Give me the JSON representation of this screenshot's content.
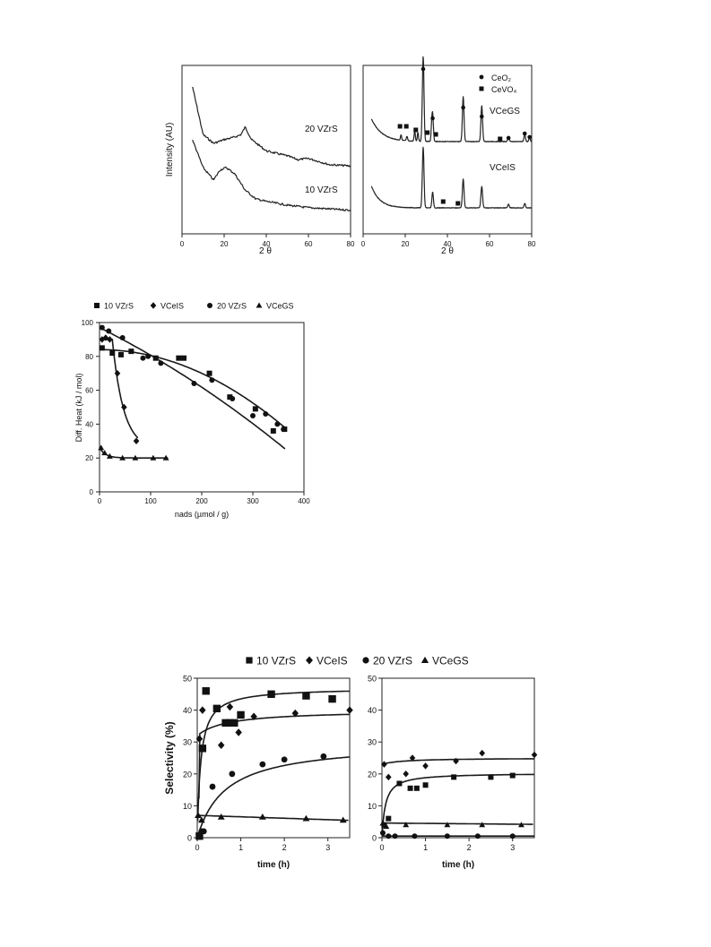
{
  "chart_data": [
    {
      "type": "line",
      "panel": "xrd-left",
      "xlabel": "2 θ",
      "ylabel": "Intensity (AU)",
      "xlim": [
        0,
        80
      ],
      "xticks": [
        "0",
        "20",
        "40",
        "60",
        "80"
      ],
      "series": [
        {
          "name": "20 VZrS",
          "x": [
            5,
            10,
            15,
            20,
            25,
            28,
            30,
            33,
            40,
            50,
            55,
            60,
            70,
            80
          ],
          "values": [
            1.0,
            0.62,
            0.55,
            0.58,
            0.6,
            0.62,
            0.68,
            0.58,
            0.49,
            0.45,
            0.42,
            0.43,
            0.38,
            0.37
          ]
        },
        {
          "name": "10 VZrS",
          "x": [
            5,
            10,
            15,
            18,
            21,
            25,
            30,
            35,
            40,
            50,
            60,
            70,
            80
          ],
          "values": [
            0.62,
            0.4,
            0.3,
            0.38,
            0.4,
            0.35,
            0.22,
            0.15,
            0.13,
            0.1,
            0.08,
            0.07,
            0.06
          ]
        }
      ],
      "annotations": [
        "20 VZrS",
        "10 VZrS"
      ]
    },
    {
      "type": "line",
      "panel": "xrd-right",
      "xlabel": "2 θ",
      "xlim": [
        0,
        80
      ],
      "xticks": [
        "0",
        "20",
        "40",
        "60",
        "80"
      ],
      "legend": [
        {
          "marker": "circle",
          "label": "CeO₂"
        },
        {
          "marker": "square",
          "label": "CeVO₄"
        }
      ],
      "series_labels": [
        "VCeGS",
        "VCeIS"
      ],
      "peaks_CeO2_2theta": [
        28.5,
        33,
        47.5,
        56.3,
        69,
        76.7,
        79
      ],
      "peaks_CeVO4_2theta": [
        18,
        20.8,
        24.5,
        26,
        32.5,
        35,
        48,
        65
      ]
    },
    {
      "type": "scatter",
      "panel": "differential-heat",
      "title": "",
      "xlabel": "nads (µmol / g)",
      "ylabel": "Diff. Heat (kJ / mol)",
      "xlim": [
        0,
        400
      ],
      "ylim": [
        0,
        100
      ],
      "xticks": [
        "0",
        "100",
        "200",
        "300",
        "400"
      ],
      "yticks": [
        "0",
        "20",
        "40",
        "60",
        "80",
        "100"
      ],
      "legend_position": "top",
      "series": [
        {
          "name": "10 VZrS",
          "marker": "square",
          "x": [
            5,
            25,
            42,
            62,
            110,
            155,
            165,
            215,
            255,
            305,
            340,
            362
          ],
          "values": [
            85,
            82,
            81,
            83,
            79,
            79,
            79,
            70,
            56,
            49,
            36,
            37
          ]
        },
        {
          "name": "VCeIS",
          "marker": "diamond",
          "x": [
            5,
            12,
            20,
            35,
            48,
            72
          ],
          "values": [
            90,
            91,
            90,
            70,
            50,
            30
          ]
        },
        {
          "name": "20 VZrS",
          "marker": "circle",
          "x": [
            5,
            18,
            45,
            85,
            95,
            120,
            185,
            220,
            260,
            300,
            325,
            348,
            360
          ],
          "values": [
            97,
            95,
            91,
            79,
            80,
            76,
            64,
            66,
            55,
            45,
            46,
            40,
            37
          ]
        },
        {
          "name": "VCeGS",
          "marker": "triangle",
          "x": [
            3,
            10,
            20,
            45,
            70,
            105,
            130
          ],
          "values": [
            26,
            23,
            21,
            20,
            20,
            20,
            20
          ]
        }
      ]
    },
    {
      "type": "scatter",
      "panel": "selectivity-left",
      "xlabel": "time (h)",
      "ylabel": "Selectivity (%)",
      "xlim": [
        0,
        3.5
      ],
      "ylim": [
        0,
        50
      ],
      "xticks": [
        "0",
        "1",
        "2",
        "3"
      ],
      "yticks": [
        "0",
        "10",
        "20",
        "30",
        "40",
        "50"
      ],
      "legend_position": "top",
      "series": [
        {
          "name": "10 VZrS",
          "marker": "square",
          "x": [
            0.05,
            0.12,
            0.2,
            0.45,
            0.65,
            0.75,
            0.85,
            1.0,
            1.7,
            2.5,
            3.1
          ],
          "values": [
            0.5,
            28,
            46,
            40.5,
            36,
            36,
            36,
            38.5,
            45,
            44.5,
            43.5
          ]
        },
        {
          "name": "VCeIS",
          "marker": "diamond",
          "x": [
            0.05,
            0.12,
            0.55,
            0.75,
            0.95,
            1.3,
            2.25,
            3.5
          ],
          "values": [
            31,
            40,
            29,
            41,
            33,
            38,
            39,
            40
          ]
        },
        {
          "name": "20 VZrS",
          "marker": "circle",
          "x": [
            0.1,
            0.15,
            0.35,
            0.8,
            1.5,
            2.0,
            2.9
          ],
          "values": [
            2,
            2,
            16,
            20,
            23,
            24.5,
            25.5
          ]
        },
        {
          "name": "VCeGS",
          "marker": "triangle",
          "x": [
            0.02,
            0.1,
            0.55,
            1.5,
            2.5,
            3.35
          ],
          "values": [
            7,
            5.5,
            6.5,
            6.5,
            6,
            5.5
          ]
        }
      ]
    },
    {
      "type": "scatter",
      "panel": "selectivity-right",
      "xlabel": "time (h)",
      "xlim": [
        0,
        3.5
      ],
      "ylim": [
        0,
        50
      ],
      "xticks": [
        "0",
        "1",
        "2",
        "3"
      ],
      "yticks": [
        "0",
        "10",
        "20",
        "30",
        "40",
        "50"
      ],
      "series": [
        {
          "name": "10 VZrS",
          "marker": "square",
          "x": [
            0.05,
            0.15,
            0.4,
            0.65,
            0.8,
            1.0,
            1.65,
            2.5,
            3.0
          ],
          "values": [
            4,
            6,
            17,
            15.5,
            15.5,
            16.5,
            19,
            19,
            19.5
          ]
        },
        {
          "name": "VCeIS",
          "marker": "diamond",
          "x": [
            0.05,
            0.15,
            0.55,
            0.7,
            1.0,
            1.7,
            2.3,
            3.5
          ],
          "values": [
            23,
            19,
            20,
            25,
            22.5,
            24,
            26.5,
            26
          ]
        },
        {
          "name": "20 VZrS",
          "marker": "circle",
          "x": [
            0.02,
            0.15,
            0.3,
            0.75,
            1.5,
            2.2,
            3.0
          ],
          "values": [
            1.5,
            0.5,
            0.5,
            0.5,
            0.5,
            0.5,
            0.5
          ]
        },
        {
          "name": "VCeGS",
          "marker": "triangle",
          "x": [
            0.02,
            0.1,
            0.55,
            1.5,
            2.3,
            3.2
          ],
          "values": [
            4.5,
            3.5,
            4,
            4,
            4,
            4
          ]
        }
      ]
    }
  ],
  "xrd": {
    "left": {
      "ylabel": "Intensity (AU)",
      "xlabel": "2 θ",
      "label_top": "20 VZrS",
      "label_bottom": "10 VZrS",
      "ticks": [
        "0",
        "20",
        "40",
        "60",
        "80"
      ]
    },
    "right": {
      "xlabel": "2 θ",
      "legend_ceo2": "CeO₂",
      "legend_cevo4": "CeVO₄",
      "label_top": "VCeGS",
      "label_bottom": "VCeIS",
      "ticks": [
        "0",
        "20",
        "40",
        "60",
        "80"
      ]
    }
  },
  "heat": {
    "legend": [
      "10 VZrS",
      "VCeIS",
      "20 VZrS",
      "VCeGS"
    ],
    "xlabel": "nads (µmol / g)",
    "ylabel": "Diff. Heat (kJ / mol)"
  },
  "selectivity": {
    "legend": [
      "10 VZrS",
      "VCeIS",
      "20 VZrS",
      "VCeGS"
    ],
    "ylabel": "Selectivity (%)",
    "xlabel_left": "time (h)",
    "xlabel_right": "time (h)"
  }
}
